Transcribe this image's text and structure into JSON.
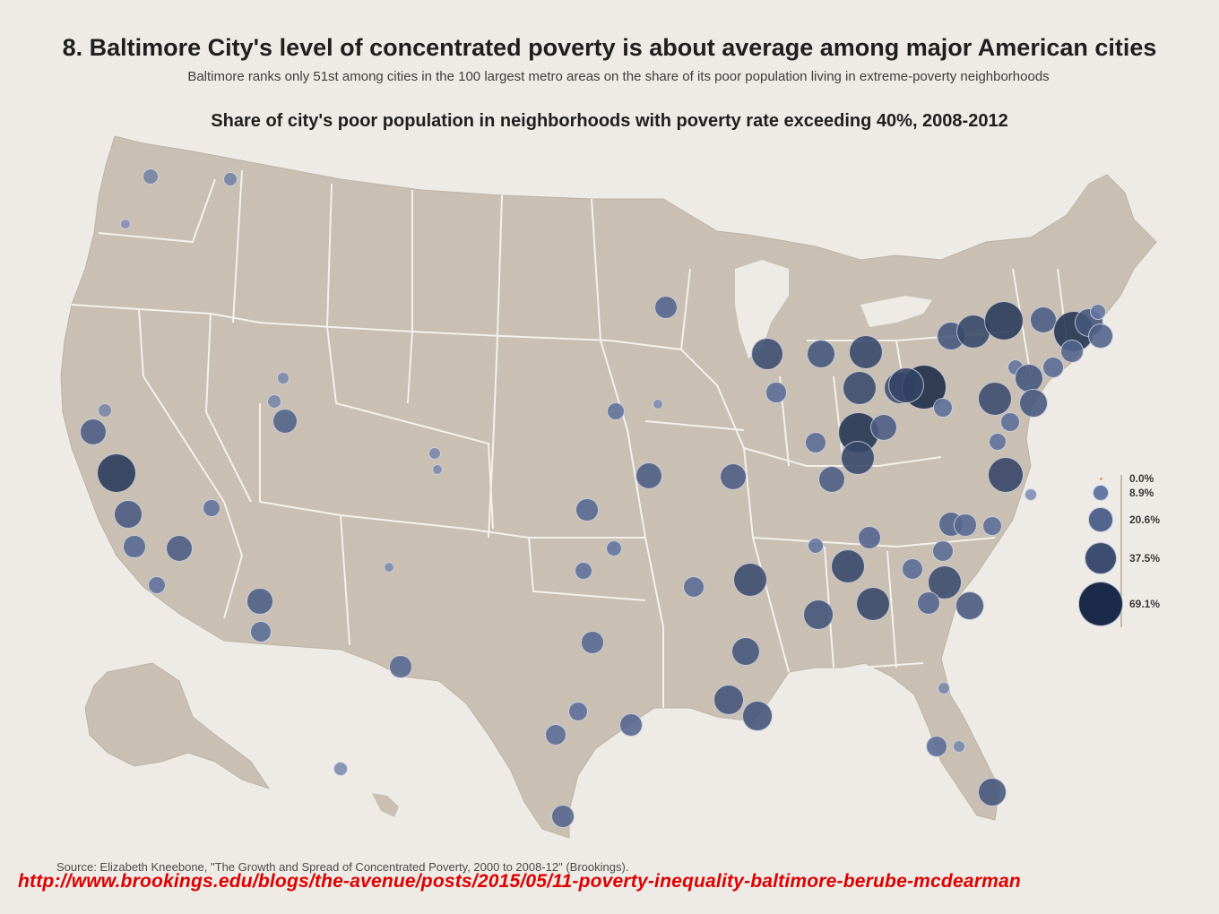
{
  "title": "8. Baltimore City's level of concentrated poverty is about average among major American cities",
  "subtitle": "Baltimore ranks only 51st among cities in the 100 largest metro areas on the share of its poor population living in extreme-poverty neighborhoods",
  "map_title": "Share of city's poor population in neighborhoods with poverty rate exceeding 40%, 2008-2012",
  "legend": {
    "items": [
      {
        "label": "0.0%",
        "value": 0.0
      },
      {
        "label": "8.9%",
        "value": 8.9
      },
      {
        "label": "20.6%",
        "value": 20.6
      },
      {
        "label": "37.5%",
        "value": 37.5
      },
      {
        "label": "69.1%",
        "value": 69.1
      }
    ]
  },
  "colors": {
    "background": "#eeebe6",
    "land": "#c9bfb3",
    "state_border": "#f4f1ec",
    "bubble_light": "#7d8fc0",
    "bubble_dark": "#1b2a48",
    "url": "#e00000"
  },
  "source": "Source: Elizabeth Kneebone, \"The Growth and Spread of Concentrated Poverty, 2000 to 2008-12\" (Brookings).",
  "url": "http://www.brookings.edu/blogs/the-avenue/posts/2015/05/11-poverty-inequality-baltimore-berube-mcdearman"
}
